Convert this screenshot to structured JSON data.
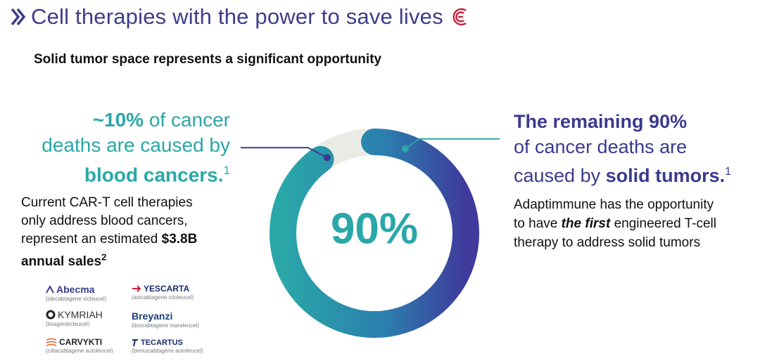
{
  "header": {
    "title": "Cell therapies with the power to save lives",
    "subtitle": "Solid tumor space represents a significant opportunity"
  },
  "left": {
    "stat_part1": "~10%",
    "stat_part2": " of cancer",
    "stat_line2": "deaths are caused by",
    "stat_line3": "blood cancers.",
    "stat_sup": "1",
    "desc_line1": "Current CAR-T cell therapies",
    "desc_line2": "only address blood cancers,",
    "desc_line3_a": "represent an estimated ",
    "desc_line3_b": "$3.8B",
    "desc_line4": "annual sales",
    "desc_sup": "2"
  },
  "right": {
    "stat_a": "The remaining ",
    "stat_b": "90%",
    "stat_line2": "of cancer deaths are",
    "stat_line3_a": "caused by ",
    "stat_line3_b": "solid tumors.",
    "stat_sup": "1",
    "desc_line1": "Adaptimmune has the opportunity",
    "desc_line2_a": "to have ",
    "desc_line2_b": "the first",
    "desc_line2_c": " engineered T-cell",
    "desc_line3": "therapy to address solid tumors"
  },
  "products": [
    {
      "name": "Abecma",
      "generic": "(idecabtagene vicleucel)"
    },
    {
      "name": "YESCARTA",
      "generic": "(axicabtagene ciloleucel)"
    },
    {
      "name": "KYMRIAH",
      "generic": "(tisagenlecleucel)"
    },
    {
      "name": "Breyanzi",
      "generic": "(lisocabtagene maraleucel)"
    },
    {
      "name": "CARVYKTI",
      "generic": "(ciltacabtagene autoleucel)"
    },
    {
      "name": "TECARTUS",
      "generic": "(brexucabtagene autoleucel)"
    }
  ],
  "colors": {
    "title": "#3d3c8c",
    "teal": "#2aa7a8",
    "indigo": "#3b3a8e",
    "ring_track": "#ebebe6"
  },
  "chart_data": {
    "type": "pie",
    "style": "donut",
    "center_label": "90%",
    "slices": [
      {
        "label": "blood cancers",
        "value": 10
      },
      {
        "label": "solid tumors",
        "value": 90
      }
    ]
  }
}
